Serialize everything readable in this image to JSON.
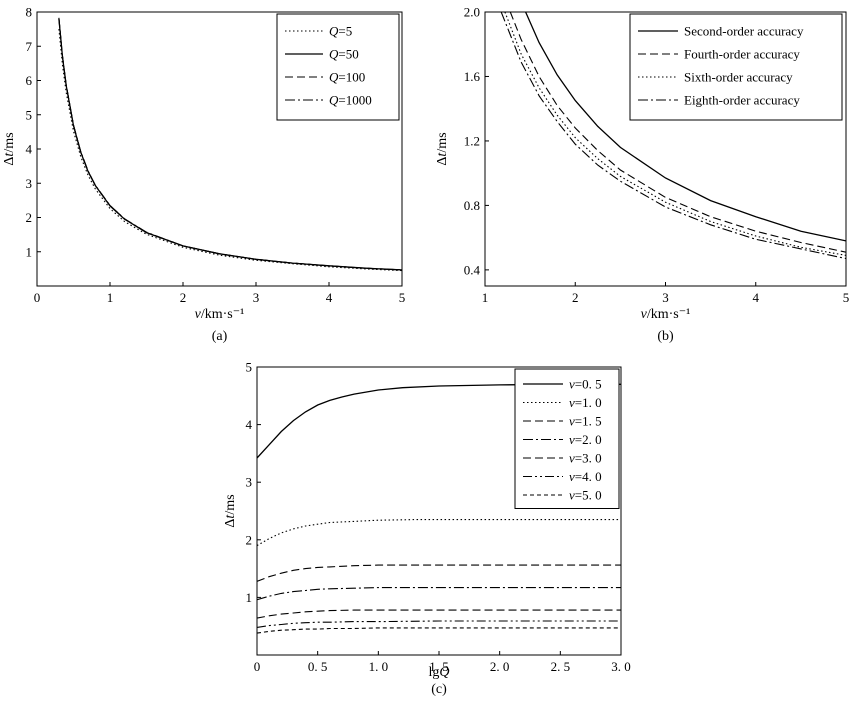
{
  "chart_data": [
    {
      "id": "a",
      "type": "line",
      "caption": "(a)",
      "xlabel": "v/km·s⁻¹",
      "ylabel": "Δt/ms",
      "xlim": [
        0,
        5
      ],
      "ylim": [
        0,
        8
      ],
      "xticks": [
        0,
        1,
        2,
        3,
        4,
        5
      ],
      "yticks": [
        1,
        2,
        3,
        4,
        5,
        6,
        7,
        8
      ],
      "xtick_labels": [
        "0",
        "1",
        "2",
        "3",
        "4",
        "5"
      ],
      "ytick_labels": [
        "1",
        "2",
        "3",
        "4",
        "5",
        "6",
        "7",
        "8"
      ],
      "legend_position": "top-right",
      "series": [
        {
          "name": "Q=5",
          "name_var": "Q",
          "name_rest": "=5",
          "style": "dotted",
          "x": [
            0.3,
            0.35,
            0.4,
            0.5,
            0.6,
            0.7,
            0.8,
            1.0,
            1.2,
            1.5,
            2.0,
            2.5,
            3.0,
            3.5,
            4.0,
            4.5,
            5.0
          ],
          "y": [
            7.5,
            6.45,
            5.65,
            4.52,
            3.77,
            3.23,
            2.83,
            2.26,
            1.88,
            1.51,
            1.13,
            0.9,
            0.75,
            0.65,
            0.56,
            0.5,
            0.45
          ]
        },
        {
          "name": "Q=50",
          "name_var": "Q",
          "name_rest": "=50",
          "style": "solid",
          "x": [
            0.3,
            0.35,
            0.4,
            0.5,
            0.6,
            0.7,
            0.8,
            1.0,
            1.2,
            1.5,
            2.0,
            2.5,
            3.0,
            3.5,
            4.0,
            4.5,
            5.0
          ],
          "y": [
            7.8,
            6.69,
            5.85,
            4.68,
            3.9,
            3.34,
            2.93,
            2.34,
            1.95,
            1.56,
            1.17,
            0.94,
            0.78,
            0.67,
            0.59,
            0.52,
            0.47
          ]
        },
        {
          "name": "Q=100",
          "name_var": "Q",
          "name_rest": "=100",
          "style": "dashed",
          "x": [
            0.3,
            0.35,
            0.4,
            0.5,
            0.6,
            0.7,
            0.8,
            1.0,
            1.2,
            1.5,
            2.0,
            2.5,
            3.0,
            3.5,
            4.0,
            4.5,
            5.0
          ],
          "y": [
            7.82,
            6.7,
            5.87,
            4.69,
            3.91,
            3.35,
            2.93,
            2.35,
            1.96,
            1.56,
            1.17,
            0.94,
            0.78,
            0.67,
            0.59,
            0.52,
            0.47
          ]
        },
        {
          "name": "Q=1000",
          "name_var": "Q",
          "name_rest": "=1000",
          "style": "dashdot",
          "x": [
            0.3,
            0.35,
            0.4,
            0.5,
            0.6,
            0.7,
            0.8,
            1.0,
            1.2,
            1.5,
            2.0,
            2.5,
            3.0,
            3.5,
            4.0,
            4.5,
            5.0
          ],
          "y": [
            7.83,
            6.71,
            5.87,
            4.7,
            3.92,
            3.36,
            2.94,
            2.35,
            1.96,
            1.57,
            1.17,
            0.94,
            0.78,
            0.67,
            0.59,
            0.52,
            0.47
          ]
        }
      ]
    },
    {
      "id": "b",
      "type": "line",
      "caption": "(b)",
      "xlabel": "v/km·s⁻¹",
      "ylabel": "Δt/ms",
      "xlim": [
        1,
        5
      ],
      "ylim": [
        0.3,
        2.0
      ],
      "xticks": [
        1,
        2,
        3,
        4,
        5
      ],
      "yticks": [
        0.4,
        0.8,
        1.2,
        1.6,
        2.0
      ],
      "xtick_labels": [
        "1",
        "2",
        "3",
        "4",
        "5"
      ],
      "ytick_labels": [
        "0.4",
        "0.8",
        "1.2",
        "1.6",
        "2.0"
      ],
      "legend_position": "top-right",
      "series": [
        {
          "name": "Second-order accuracy",
          "style": "solid",
          "x": [
            1.45,
            1.6,
            1.8,
            2.0,
            2.25,
            2.5,
            3.0,
            3.5,
            4.0,
            4.5,
            5.0
          ],
          "y": [
            2.0,
            1.81,
            1.61,
            1.45,
            1.29,
            1.16,
            0.97,
            0.83,
            0.73,
            0.64,
            0.58
          ]
        },
        {
          "name": "Fourth-order accuracy",
          "style": "dashed",
          "x": [
            1.28,
            1.4,
            1.6,
            1.8,
            2.0,
            2.25,
            2.5,
            3.0,
            3.5,
            4.0,
            4.5,
            5.0
          ],
          "y": [
            2.0,
            1.83,
            1.6,
            1.42,
            1.28,
            1.14,
            1.02,
            0.85,
            0.73,
            0.64,
            0.57,
            0.51
          ]
        },
        {
          "name": "Sixth-order accuracy",
          "style": "dotted",
          "x": [
            1.22,
            1.4,
            1.6,
            1.8,
            2.0,
            2.25,
            2.5,
            3.0,
            3.5,
            4.0,
            4.5,
            5.0
          ],
          "y": [
            2.0,
            1.74,
            1.53,
            1.36,
            1.22,
            1.09,
            0.98,
            0.82,
            0.7,
            0.61,
            0.54,
            0.49
          ]
        },
        {
          "name": "Eighth-order accuracy",
          "style": "dashdot",
          "x": [
            1.18,
            1.4,
            1.6,
            1.8,
            2.0,
            2.25,
            2.5,
            3.0,
            3.5,
            4.0,
            4.5,
            5.0
          ],
          "y": [
            2.0,
            1.69,
            1.48,
            1.32,
            1.18,
            1.05,
            0.95,
            0.79,
            0.68,
            0.59,
            0.53,
            0.47
          ]
        }
      ]
    },
    {
      "id": "c",
      "type": "line",
      "caption": "(c)",
      "xlabel": "lgQ",
      "ylabel": "Δt/ms",
      "xlim": [
        0,
        3
      ],
      "ylim": [
        0,
        5
      ],
      "xticks": [
        0,
        0.5,
        1.0,
        1.5,
        2.0,
        2.5,
        3.0
      ],
      "yticks": [
        1,
        2,
        3,
        4,
        5
      ],
      "xtick_labels": [
        "0",
        "0. 5",
        "1. 0",
        "1. 5",
        "2. 0",
        "2. 5",
        "3. 0"
      ],
      "ytick_labels": [
        "1",
        "2",
        "3",
        "4",
        "5"
      ],
      "legend_position": "top-right",
      "series": [
        {
          "name": "v=0. 5",
          "name_var": "v",
          "name_rest": "=0. 5",
          "style": "solid",
          "x": [
            0,
            0.1,
            0.2,
            0.3,
            0.4,
            0.5,
            0.6,
            0.7,
            0.8,
            1.0,
            1.2,
            1.5,
            2.0,
            2.5,
            3.0
          ],
          "y": [
            3.42,
            3.65,
            3.88,
            4.07,
            4.22,
            4.34,
            4.42,
            4.48,
            4.53,
            4.6,
            4.64,
            4.67,
            4.69,
            4.7,
            4.7
          ]
        },
        {
          "name": "v=1. 0",
          "name_var": "v",
          "name_rest": "=1. 0",
          "style": "dotted",
          "x": [
            0,
            0.1,
            0.2,
            0.3,
            0.4,
            0.5,
            0.6,
            0.8,
            1.0,
            1.3,
            1.6,
            2.0,
            2.5,
            3.0
          ],
          "y": [
            1.9,
            2.02,
            2.12,
            2.19,
            2.24,
            2.27,
            2.3,
            2.32,
            2.34,
            2.35,
            2.35,
            2.35,
            2.35,
            2.35
          ]
        },
        {
          "name": "v=1. 5",
          "name_var": "v",
          "name_rest": "=1. 5",
          "style": "dashed",
          "x": [
            0,
            0.1,
            0.2,
            0.3,
            0.4,
            0.5,
            0.6,
            0.8,
            1.0,
            1.5,
            2.0,
            2.5,
            3.0
          ],
          "y": [
            1.28,
            1.36,
            1.42,
            1.47,
            1.5,
            1.52,
            1.53,
            1.55,
            1.56,
            1.56,
            1.56,
            1.56,
            1.56
          ]
        },
        {
          "name": "v=2. 0",
          "name_var": "v",
          "name_rest": "=2. 0",
          "style": "dashdot",
          "x": [
            0,
            0.1,
            0.2,
            0.3,
            0.4,
            0.5,
            0.6,
            0.8,
            1.0,
            1.5,
            2.0,
            2.5,
            3.0
          ],
          "y": [
            0.96,
            1.02,
            1.07,
            1.1,
            1.12,
            1.14,
            1.15,
            1.16,
            1.17,
            1.17,
            1.17,
            1.17,
            1.17
          ]
        },
        {
          "name": "v=3. 0",
          "name_var": "v",
          "name_rest": "=3. 0",
          "style": "dashed",
          "x": [
            0,
            0.1,
            0.2,
            0.3,
            0.4,
            0.5,
            0.6,
            0.8,
            1.0,
            1.5,
            2.0,
            2.5,
            3.0
          ],
          "y": [
            0.64,
            0.68,
            0.71,
            0.73,
            0.75,
            0.76,
            0.77,
            0.78,
            0.78,
            0.78,
            0.78,
            0.78,
            0.78
          ]
        },
        {
          "name": "v=4. 0",
          "name_var": "v",
          "name_rest": "=4. 0",
          "style": "dashdotdot",
          "x": [
            0,
            0.1,
            0.2,
            0.3,
            0.4,
            0.5,
            0.6,
            0.8,
            1.0,
            1.5,
            2.0,
            2.5,
            3.0
          ],
          "y": [
            0.48,
            0.51,
            0.53,
            0.55,
            0.56,
            0.57,
            0.57,
            0.58,
            0.58,
            0.59,
            0.59,
            0.59,
            0.59
          ]
        },
        {
          "name": "v=5. 0",
          "name_var": "v",
          "name_rest": "=5. 0",
          "style": "dashed_short",
          "x": [
            0,
            0.1,
            0.2,
            0.3,
            0.4,
            0.5,
            0.6,
            0.8,
            1.0,
            1.5,
            2.0,
            2.5,
            3.0
          ],
          "y": [
            0.38,
            0.41,
            0.43,
            0.44,
            0.45,
            0.45,
            0.46,
            0.46,
            0.47,
            0.47,
            0.47,
            0.47,
            0.47
          ]
        }
      ]
    }
  ]
}
